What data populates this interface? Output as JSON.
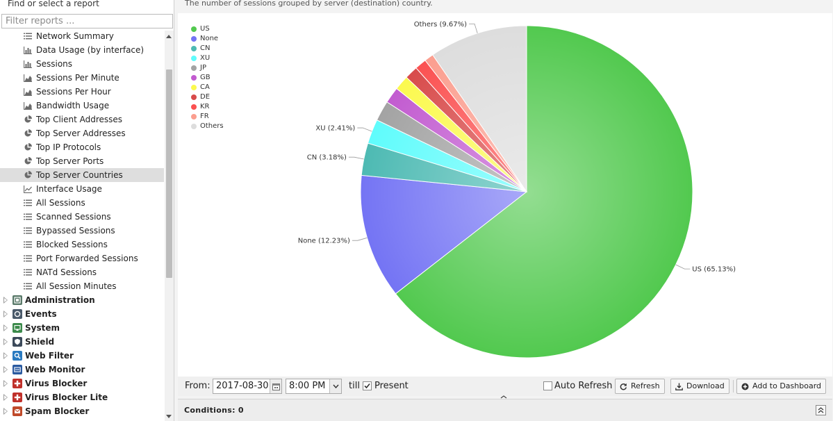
{
  "sidebar": {
    "title": "Find or select a report",
    "filter_placeholder": "Filter reports ...",
    "reports": [
      {
        "label": "Network Summary",
        "icon": "list-icon"
      },
      {
        "label": "Data Usage (by interface)",
        "icon": "bar-chart-icon"
      },
      {
        "label": "Sessions",
        "icon": "bar-chart-icon"
      },
      {
        "label": "Sessions Per Minute",
        "icon": "area-chart-icon"
      },
      {
        "label": "Sessions Per Hour",
        "icon": "area-chart-icon"
      },
      {
        "label": "Bandwidth Usage",
        "icon": "area-chart-icon"
      },
      {
        "label": "Top Client Addresses",
        "icon": "pie-chart-icon"
      },
      {
        "label": "Top Server Addresses",
        "icon": "pie-chart-icon"
      },
      {
        "label": "Top IP Protocols",
        "icon": "pie-chart-icon"
      },
      {
        "label": "Top Server Ports",
        "icon": "pie-chart-icon"
      },
      {
        "label": "Top Server Countries",
        "icon": "pie-chart-icon",
        "selected": true
      },
      {
        "label": "Interface Usage",
        "icon": "line-chart-icon"
      },
      {
        "label": "All Sessions",
        "icon": "list-icon"
      },
      {
        "label": "Scanned Sessions",
        "icon": "list-icon"
      },
      {
        "label": "Bypassed Sessions",
        "icon": "list-icon"
      },
      {
        "label": "Blocked Sessions",
        "icon": "list-icon"
      },
      {
        "label": "Port Forwarded Sessions",
        "icon": "list-icon"
      },
      {
        "label": "NATd Sessions",
        "icon": "list-icon"
      },
      {
        "label": "All Session Minutes",
        "icon": "list-icon"
      }
    ],
    "categories": [
      {
        "label": "Administration",
        "icon": "administration-icon",
        "color": "#5a7a6a"
      },
      {
        "label": "Events",
        "icon": "events-icon",
        "color": "#4a5a6a"
      },
      {
        "label": "System",
        "icon": "system-icon",
        "color": "#3b8a4a"
      },
      {
        "label": "Shield",
        "icon": "shield-icon",
        "color": "#3c4a5a"
      },
      {
        "label": "Web Filter",
        "icon": "web-filter-icon",
        "color": "#2a7ac0"
      },
      {
        "label": "Web Monitor",
        "icon": "web-monitor-icon",
        "color": "#2a5aa0"
      },
      {
        "label": "Virus Blocker",
        "icon": "virus-blocker-icon",
        "color": "#c0302a"
      },
      {
        "label": "Virus Blocker Lite",
        "icon": "virus-blocker-lite-icon",
        "color": "#c0302a"
      },
      {
        "label": "Spam Blocker",
        "icon": "spam-blocker-icon",
        "color": "#c04a2a"
      }
    ]
  },
  "report": {
    "description": "The number of sessions grouped by server (destination) country."
  },
  "chart_data": {
    "type": "pie",
    "legend_position": "top-left",
    "categories": [
      "US",
      "None",
      "CN",
      "XU",
      "JP",
      "GB",
      "CA",
      "DE",
      "KR",
      "FR",
      "Others"
    ],
    "values": [
      65.13,
      12.23,
      3.18,
      2.41,
      2.0,
      1.6,
      1.45,
      1.3,
      1.15,
      0.9,
      9.67
    ],
    "colors": [
      "#52c94f",
      "#7474f4",
      "#4dbab3",
      "#5ffcfc",
      "#a3a3a3",
      "#c25bd0",
      "#fbf94f",
      "#d84b4b",
      "#fb5151",
      "#fb9e8f",
      "#dddddd"
    ],
    "data_labels": [
      "US (65.13%)",
      "None (12.23%)",
      "CN (3.18%)",
      "XU (2.41%)",
      "",
      "",
      "",
      "",
      "",
      "",
      "Others (9.67%)"
    ]
  },
  "toolbar": {
    "from_label": "From:",
    "date_value": "2017-08-30",
    "time_value": "8:00 PM",
    "till_label": "till",
    "present_label": "Present",
    "present_checked": true,
    "auto_refresh_label": "Auto Refresh",
    "auto_refresh_checked": false,
    "refresh_label": "Refresh",
    "download_label": "Download",
    "add_dashboard_label": "Add to Dashboard"
  },
  "conditions": {
    "title": "Conditions: 0"
  }
}
